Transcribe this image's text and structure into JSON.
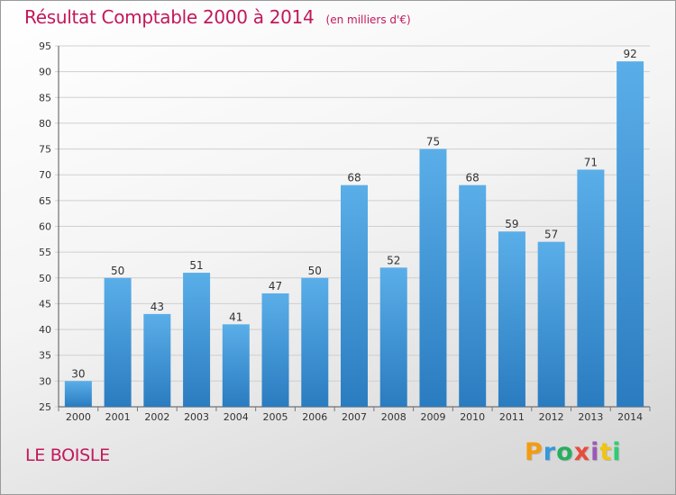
{
  "chart_data": {
    "type": "bar",
    "title": "Résultat Comptable 2000 à 2014",
    "subtitle": "(en milliers d'€)",
    "categories": [
      "2000",
      "2001",
      "2002",
      "2003",
      "2004",
      "2005",
      "2006",
      "2007",
      "2008",
      "2009",
      "2010",
      "2011",
      "2012",
      "2013",
      "2014"
    ],
    "values": [
      30,
      50,
      43,
      51,
      41,
      47,
      50,
      68,
      52,
      75,
      68,
      59,
      57,
      71,
      92
    ],
    "ylim": [
      25,
      95
    ],
    "yticks": [
      25,
      30,
      35,
      40,
      45,
      50,
      55,
      60,
      65,
      70,
      75,
      80,
      85,
      90,
      95
    ],
    "xlabel": "",
    "ylabel": "",
    "grid": true,
    "bar_color": "#3a8fd4"
  },
  "footer": {
    "commune": "LE BOISLE",
    "brand": "Proxiti"
  },
  "colors": {
    "title": "#c2185b",
    "brand_letters": [
      "#f39c12",
      "#3498db",
      "#27ae60",
      "#e74c3c",
      "#9b59b6",
      "#f1c40f",
      "#2ecc71"
    ]
  }
}
